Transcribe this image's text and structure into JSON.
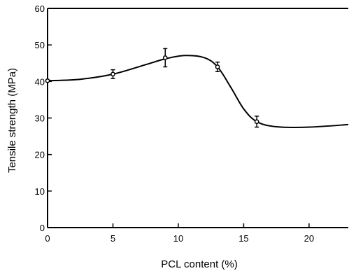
{
  "chart_data": {
    "type": "line",
    "title": "",
    "xlabel": "PCL content (%)",
    "ylabel": "Tensile strength (MPa)",
    "xlim": [
      0,
      23
    ],
    "ylim": [
      0,
      60
    ],
    "x_ticks": [
      0,
      5,
      10,
      15,
      20
    ],
    "y_ticks": [
      0,
      10,
      20,
      30,
      40,
      50,
      60
    ],
    "x_tick_labels": [
      "0",
      "5",
      "10",
      "15",
      "20"
    ],
    "y_tick_labels": [
      "0",
      "10",
      "20",
      "30",
      "40",
      "50",
      "60"
    ],
    "grid": false,
    "legend": "none",
    "series": [
      {
        "points": [
          {
            "x": 0,
            "y": 40.2,
            "err": 0
          },
          {
            "x": 5,
            "y": 42.0,
            "err": 1.2
          },
          {
            "x": 9,
            "y": 46.5,
            "err": 2.5
          },
          {
            "x": 13,
            "y": 44.0,
            "err": 1.3
          },
          {
            "x": 16,
            "y": 29.0,
            "err": 1.5
          }
        ],
        "curve": [
          {
            "x": 0,
            "y": 40.2
          },
          {
            "x": 2.5,
            "y": 40.6
          },
          {
            "x": 5,
            "y": 42.0
          },
          {
            "x": 7.5,
            "y": 44.6
          },
          {
            "x": 9,
            "y": 46.2
          },
          {
            "x": 10.5,
            "y": 47.1
          },
          {
            "x": 12,
            "y": 46.5
          },
          {
            "x": 13,
            "y": 44.0
          },
          {
            "x": 14,
            "y": 38.5
          },
          {
            "x": 15,
            "y": 32.5
          },
          {
            "x": 16,
            "y": 29.0
          },
          {
            "x": 17.5,
            "y": 27.6
          },
          {
            "x": 20,
            "y": 27.5
          },
          {
            "x": 23,
            "y": 28.2
          }
        ]
      }
    ]
  }
}
